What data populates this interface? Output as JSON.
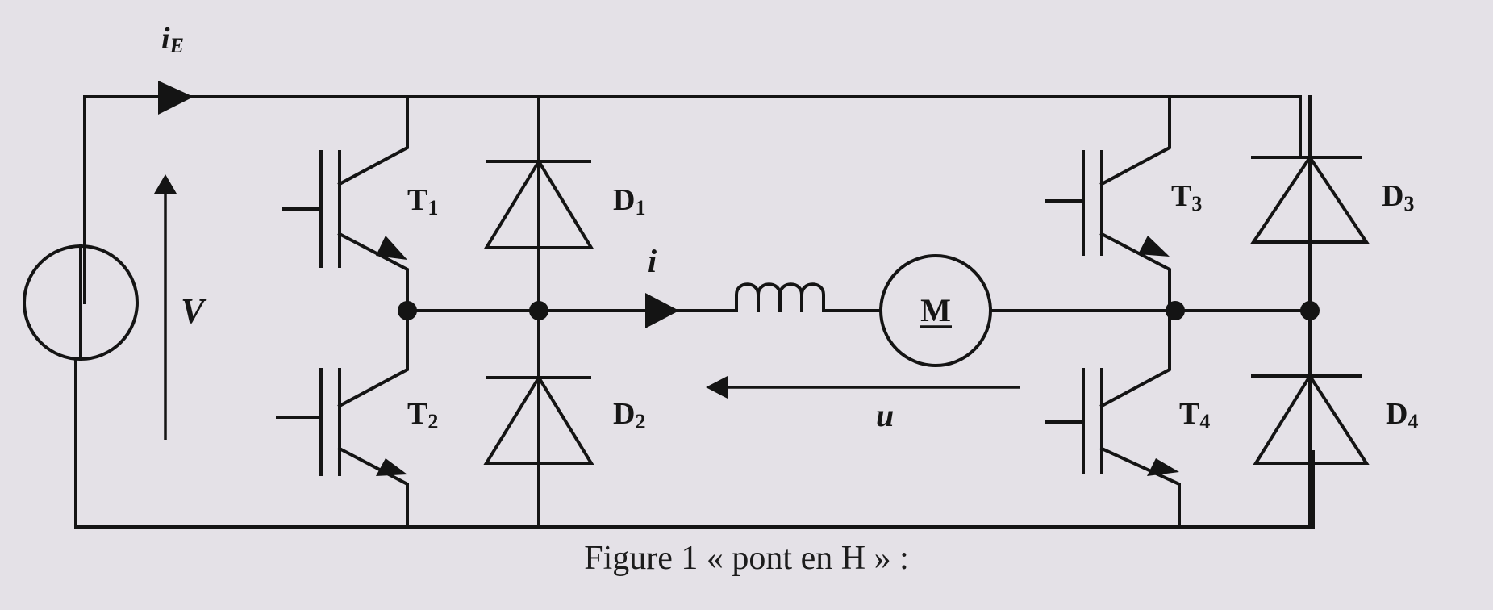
{
  "labels": {
    "source_current": "i",
    "source_current_sub": "E",
    "source_voltage": "V",
    "load_current": "i",
    "load_voltage": "u",
    "motor": "M",
    "t1": "T",
    "t1_sub": "1",
    "t2": "T",
    "t2_sub": "2",
    "t3": "T",
    "t3_sub": "3",
    "t4": "T",
    "t4_sub": "4",
    "d1": "D",
    "d1_sub": "1",
    "d2": "D",
    "d2_sub": "2",
    "d3": "D",
    "d3_sub": "3",
    "d4": "D",
    "d4_sub": "4"
  },
  "caption": "Figure 1 « pont en H » :"
}
